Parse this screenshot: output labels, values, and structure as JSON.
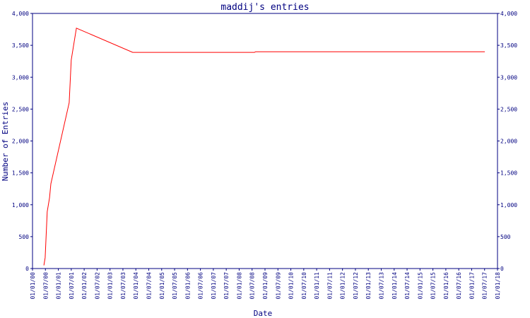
{
  "chart_data": {
    "type": "line",
    "title": "maddij's entries",
    "x_label": "Date",
    "y_label": "Number of Entries",
    "series": [
      {
        "name": "maddij",
        "color": "#ff0000",
        "x": [
          2000.44,
          2000.49,
          2000.57,
          2000.66,
          2000.71,
          2001.42,
          2001.5,
          2001.7,
          2003.88,
          2008.59,
          2008.64,
          2017.51
        ],
        "values": [
          50,
          170,
          890,
          1110,
          1330,
          2600,
          3270,
          3770,
          3390,
          3390,
          3400,
          3400
        ]
      }
    ],
    "xlim": [
      2000,
      2018
    ],
    "xticks": [
      {
        "value": 2000,
        "label": "01/01/00"
      },
      {
        "value": 2000.5,
        "label": "01/07/00"
      },
      {
        "value": 2001,
        "label": "01/01/01"
      },
      {
        "value": 2001.5,
        "label": "01/07/01"
      },
      {
        "value": 2002,
        "label": "01/01/02"
      },
      {
        "value": 2002.5,
        "label": "01/07/02"
      },
      {
        "value": 2003,
        "label": "01/01/03"
      },
      {
        "value": 2003.5,
        "label": "01/07/03"
      },
      {
        "value": 2004,
        "label": "01/01/04"
      },
      {
        "value": 2004.5,
        "label": "01/07/04"
      },
      {
        "value": 2005,
        "label": "01/01/05"
      },
      {
        "value": 2005.5,
        "label": "01/07/05"
      },
      {
        "value": 2006,
        "label": "01/01/06"
      },
      {
        "value": 2006.5,
        "label": "01/07/06"
      },
      {
        "value": 2007,
        "label": "01/01/07"
      },
      {
        "value": 2007.5,
        "label": "01/07/07"
      },
      {
        "value": 2008,
        "label": "01/01/08"
      },
      {
        "value": 2008.5,
        "label": "01/07/08"
      },
      {
        "value": 2009,
        "label": "01/01/09"
      },
      {
        "value": 2009.5,
        "label": "01/07/09"
      },
      {
        "value": 2010,
        "label": "01/01/10"
      },
      {
        "value": 2010.5,
        "label": "01/07/10"
      },
      {
        "value": 2011,
        "label": "01/01/11"
      },
      {
        "value": 2011.5,
        "label": "01/07/11"
      },
      {
        "value": 2012,
        "label": "01/01/12"
      },
      {
        "value": 2012.5,
        "label": "01/07/12"
      },
      {
        "value": 2013,
        "label": "01/01/13"
      },
      {
        "value": 2013.5,
        "label": "01/07/13"
      },
      {
        "value": 2014,
        "label": "01/01/14"
      },
      {
        "value": 2014.5,
        "label": "01/07/14"
      },
      {
        "value": 2015,
        "label": "01/01/15"
      },
      {
        "value": 2015.5,
        "label": "01/07/15"
      },
      {
        "value": 2016,
        "label": "01/01/16"
      },
      {
        "value": 2016.5,
        "label": "01/07/16"
      },
      {
        "value": 2017,
        "label": "01/01/17"
      },
      {
        "value": 2017.5,
        "label": "01/07/17"
      },
      {
        "value": 2018,
        "label": "01/01/18"
      }
    ],
    "ylim": [
      0,
      4000
    ],
    "yticks": [
      0,
      500,
      {
        "value": 1000,
        "label": "1,000"
      },
      {
        "value": 1500,
        "label": "1,500"
      },
      {
        "value": 2000,
        "label": "2,000"
      },
      {
        "value": 2500,
        "label": "2,500"
      },
      {
        "value": 3000,
        "label": "3,000"
      },
      {
        "value": 3500,
        "label": "3,500"
      },
      {
        "value": 4000,
        "label": "4,000"
      }
    ],
    "right_axis_labels": true
  }
}
